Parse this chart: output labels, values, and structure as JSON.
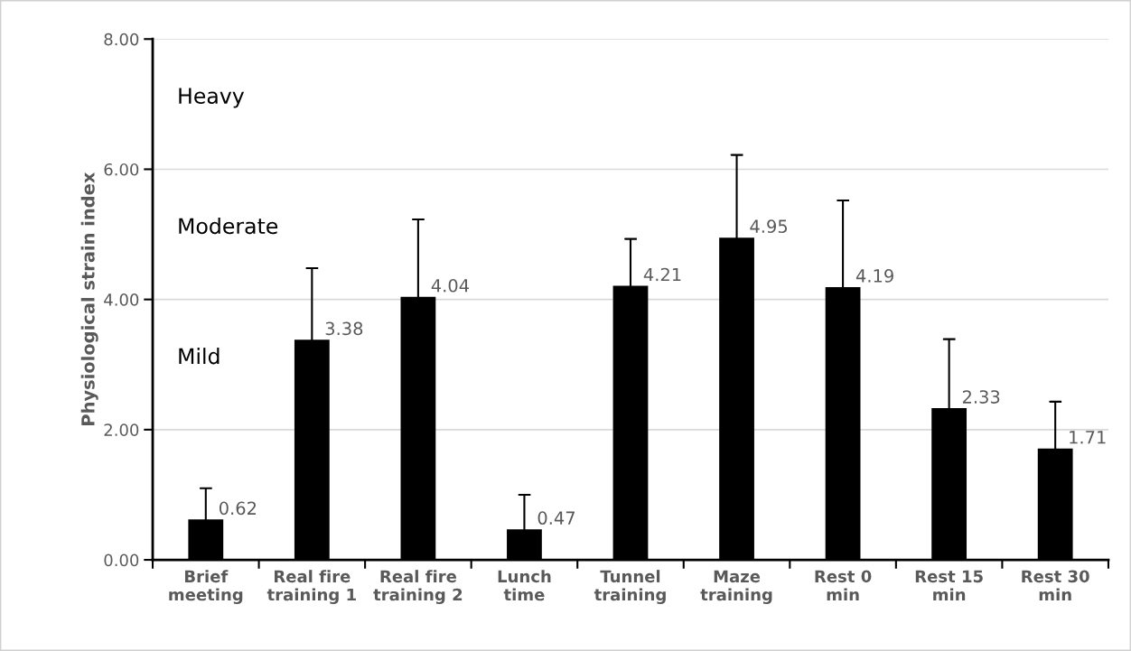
{
  "chart_data": {
    "type": "bar",
    "ylabel": "Physiological strain index",
    "categories": [
      "Brief\nmeeting",
      "Real fire\ntraining 1",
      "Real fire\ntraining 2",
      "Lunch\ntime",
      "Tunnel\ntraining",
      "Maze\ntraining",
      "Rest 0\nmin",
      "Rest 15\nmin",
      "Rest 30\nmin"
    ],
    "values": [
      0.62,
      3.38,
      4.04,
      0.47,
      4.21,
      4.95,
      4.19,
      2.33,
      1.71
    ],
    "errors": [
      [
        0.62,
        1.1
      ],
      [
        3.38,
        4.48
      ],
      [
        4.04,
        5.23
      ],
      [
        0.47,
        1.0
      ],
      [
        4.21,
        4.93
      ],
      [
        4.95,
        6.22
      ],
      [
        4.19,
        5.52
      ],
      [
        2.33,
        3.39
      ],
      [
        1.71,
        2.43
      ]
    ],
    "color": "#000000",
    "data_labels": true,
    "ylim": [
      0,
      8
    ],
    "yticks": [
      {
        "value": 0,
        "label": "0.00"
      },
      {
        "value": 2,
        "label": "2.00"
      },
      {
        "value": 4,
        "label": "4.00"
      },
      {
        "value": 6,
        "label": "6.00"
      },
      {
        "value": 8,
        "label": "8.00"
      }
    ],
    "grid": "y",
    "annotations": [
      "Heavy",
      "Moderate",
      "Mild"
    ]
  }
}
